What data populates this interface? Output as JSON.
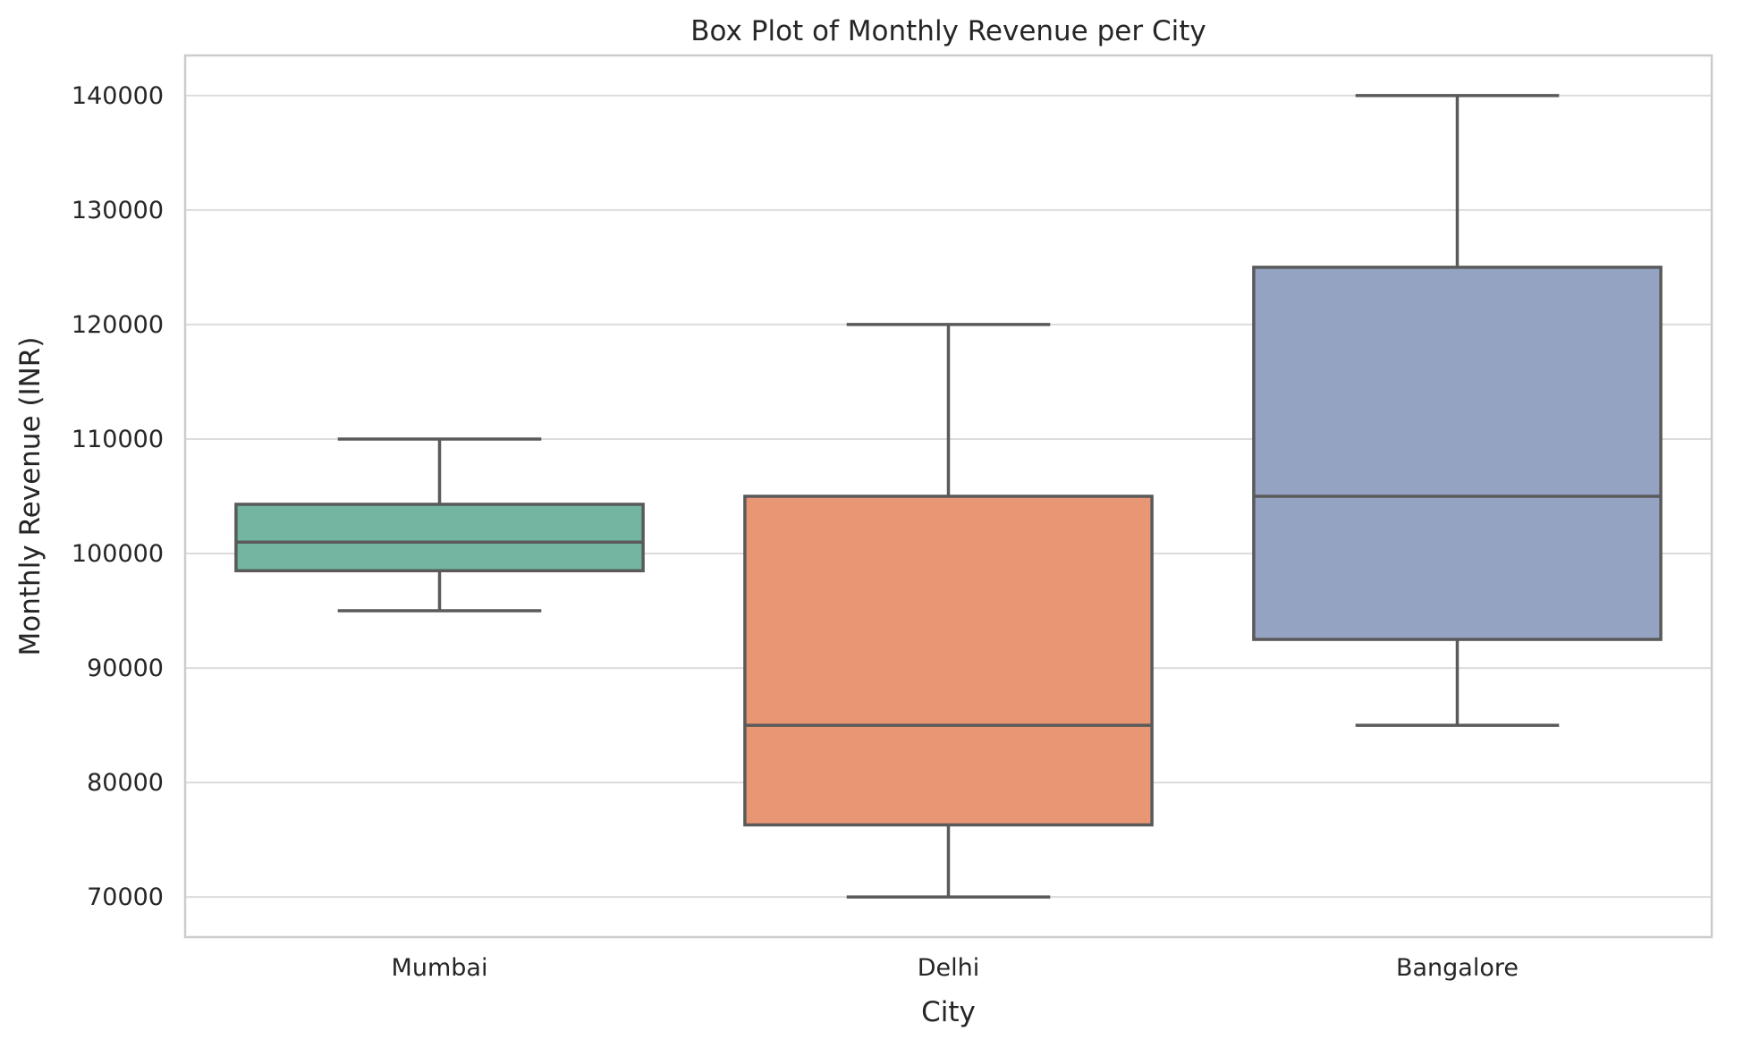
{
  "chart_data": {
    "type": "box",
    "title": "Box Plot of Monthly Revenue per City",
    "xlabel": "City",
    "ylabel": "Monthly Revenue (INR)",
    "categories": [
      "Mumbai",
      "Delhi",
      "Bangalore"
    ],
    "boxes": [
      {
        "category": "Mumbai",
        "whisker_low": 95000,
        "q1": 98500,
        "median": 101000,
        "q3": 104300,
        "whisker_high": 110000,
        "color": "#72b6a1"
      },
      {
        "category": "Delhi",
        "whisker_low": 70000,
        "q1": 76300,
        "median": 85000,
        "q3": 105000,
        "whisker_high": 120000,
        "color": "#e99675"
      },
      {
        "category": "Bangalore",
        "whisker_low": 85000,
        "q1": 92500,
        "median": 105000,
        "q3": 125000,
        "whisker_high": 140000,
        "color": "#95a3c3"
      }
    ],
    "yticks": [
      70000,
      80000,
      90000,
      100000,
      110000,
      120000,
      130000,
      140000
    ],
    "ylim": [
      66500,
      143500
    ],
    "grid": true,
    "line_color": "#5a5a5a",
    "grid_color": "#dcdcdc",
    "frame_color": "#cccccc"
  }
}
